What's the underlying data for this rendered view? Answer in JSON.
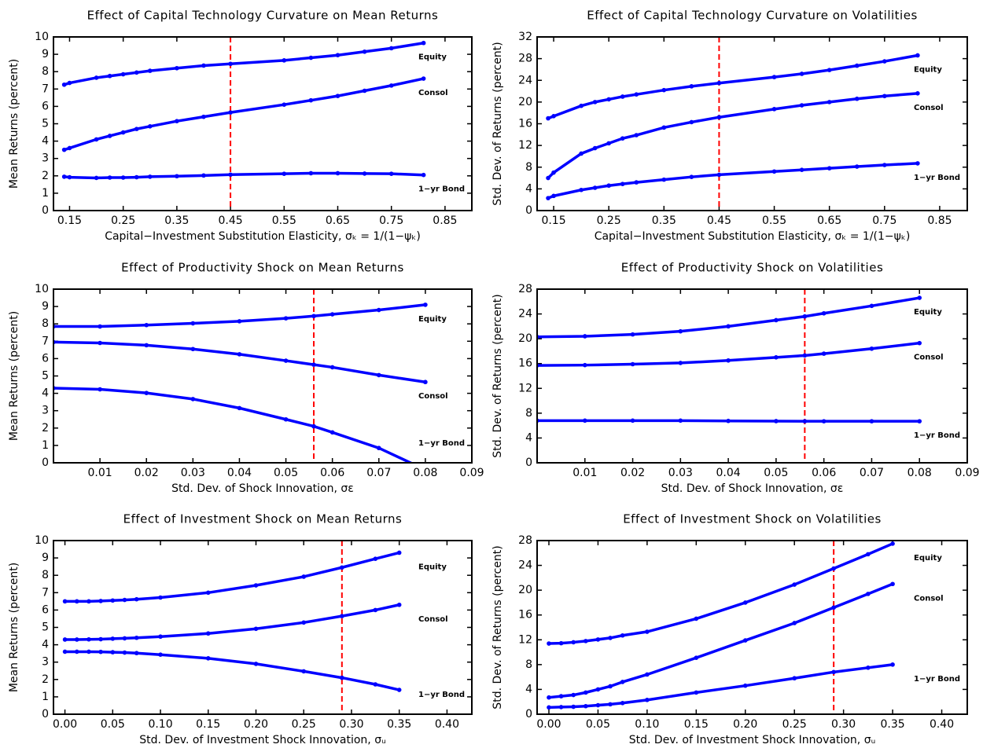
{
  "chart_data": [
    {
      "type": "line",
      "title": "Effect of Capital Technology Curvature on Mean Returns",
      "xlabel": "Capital−Investment Substitution Elasticity, σₖ = 1/(1−ψₖ)",
      "ylabel": "Mean Returns (percent)",
      "x": [
        0.14,
        0.15,
        0.2,
        0.225,
        0.25,
        0.275,
        0.3,
        0.35,
        0.4,
        0.45,
        0.55,
        0.6,
        0.65,
        0.7,
        0.75,
        0.81
      ],
      "series": [
        {
          "name": "Equity",
          "color": "#0000ff",
          "values": [
            7.25,
            7.35,
            7.65,
            7.75,
            7.85,
            7.95,
            8.05,
            8.2,
            8.35,
            8.45,
            8.65,
            8.8,
            8.95,
            9.15,
            9.35,
            9.65
          ]
        },
        {
          "name": "Consol",
          "color": "#0000ff",
          "values": [
            3.5,
            3.6,
            4.1,
            4.3,
            4.5,
            4.7,
            4.85,
            5.15,
            5.4,
            5.65,
            6.1,
            6.35,
            6.6,
            6.9,
            7.2,
            7.6
          ]
        },
        {
          "name": "1−yr Bond",
          "color": "#0000ff",
          "values": [
            1.95,
            1.92,
            1.88,
            1.9,
            1.9,
            1.92,
            1.95,
            1.98,
            2.02,
            2.07,
            2.12,
            2.15,
            2.15,
            2.13,
            2.12,
            2.05
          ]
        }
      ],
      "label_color": "#ff0000",
      "reference_line": {
        "x": 0.45,
        "color": "#ff0000"
      },
      "xlim": [
        0.12,
        0.9
      ],
      "xticks": [
        0.15,
        0.25,
        0.35,
        0.45,
        0.55,
        0.65,
        0.75,
        0.85
      ],
      "ylim": [
        0,
        10
      ],
      "yticks": [
        0,
        1,
        2,
        3,
        4,
        5,
        6,
        7,
        8,
        9,
        10
      ]
    },
    {
      "type": "line",
      "title": "Effect of Capital Technology Curvature on Volatilities",
      "xlabel": "Capital−Investment Substitution Elasticity, σₖ = 1/(1−ψₖ)",
      "ylabel": "Std. Dev. of Returns (percent)",
      "x": [
        0.14,
        0.15,
        0.2,
        0.225,
        0.25,
        0.275,
        0.3,
        0.35,
        0.4,
        0.45,
        0.55,
        0.6,
        0.65,
        0.7,
        0.75,
        0.81
      ],
      "series": [
        {
          "name": "Equity",
          "color": "#0000ff",
          "values": [
            17,
            17.4,
            19.3,
            20,
            20.5,
            21,
            21.4,
            22.2,
            22.9,
            23.5,
            24.6,
            25.2,
            25.9,
            26.7,
            27.5,
            28.6
          ]
        },
        {
          "name": "Consol",
          "color": "#0000ff",
          "values": [
            6,
            7,
            10.5,
            11.5,
            12.4,
            13.3,
            13.9,
            15.3,
            16.3,
            17.2,
            18.7,
            19.4,
            20,
            20.6,
            21.1,
            21.6
          ]
        },
        {
          "name": "1−yr Bond",
          "color": "#0000ff",
          "values": [
            2.3,
            2.7,
            3.8,
            4.2,
            4.6,
            4.9,
            5.2,
            5.7,
            6.2,
            6.6,
            7.2,
            7.5,
            7.8,
            8.1,
            8.4,
            8.7
          ]
        }
      ],
      "label_color": "#ff0000",
      "reference_line": {
        "x": 0.45,
        "color": "#ff0000"
      },
      "xlim": [
        0.12,
        0.9
      ],
      "xticks": [
        0.15,
        0.25,
        0.35,
        0.45,
        0.55,
        0.65,
        0.75,
        0.85
      ],
      "ylim": [
        0,
        32
      ],
      "yticks": [
        0,
        4,
        8,
        12,
        16,
        20,
        24,
        28,
        32
      ]
    },
    {
      "type": "line",
      "title": "Effect of Productivity Shock on Mean Returns",
      "xlabel": "Std. Dev. of Shock Innovation, σε",
      "ylabel": "Mean Returns (percent)",
      "x": [
        0,
        0.01,
        0.02,
        0.03,
        0.04,
        0.05,
        0.056,
        0.06,
        0.07,
        0.08
      ],
      "series": [
        {
          "name": "Equity",
          "color": "#0000ff",
          "values": [
            7.85,
            7.85,
            7.93,
            8.03,
            8.15,
            8.32,
            8.45,
            8.55,
            8.8,
            9.1
          ]
        },
        {
          "name": "Consol",
          "color": "#0000ff",
          "values": [
            6.95,
            6.9,
            6.77,
            6.55,
            6.25,
            5.88,
            5.65,
            5.5,
            5.05,
            4.65
          ]
        },
        {
          "name": "1−yr Bond",
          "color": "#0000ff",
          "values": [
            4.3,
            4.23,
            4.02,
            3.67,
            3.15,
            2.5,
            2.1,
            1.75,
            0.85,
            -0.4
          ]
        }
      ],
      "label_color": "#ff0000",
      "reference_line": {
        "x": 0.056,
        "color": "#ff0000"
      },
      "xlim": [
        0,
        0.09
      ],
      "xticks": [
        0.01,
        0.02,
        0.03,
        0.04,
        0.05,
        0.06,
        0.07,
        0.08,
        0.09
      ],
      "ylim": [
        0,
        10
      ],
      "yticks": [
        0,
        1,
        2,
        3,
        4,
        5,
        6,
        7,
        8,
        9,
        10
      ]
    },
    {
      "type": "line",
      "title": "Effect of Productivity Shock on Volatilities",
      "xlabel": "Std. Dev. of Shock Innovation, σε",
      "ylabel": "Std. Dev. of Returns (percent)",
      "x": [
        0,
        0.01,
        0.02,
        0.03,
        0.04,
        0.05,
        0.056,
        0.06,
        0.07,
        0.08
      ],
      "series": [
        {
          "name": "Equity",
          "color": "#0000ff",
          "values": [
            20.3,
            20.4,
            20.7,
            21.2,
            22,
            23,
            23.6,
            24.1,
            25.3,
            26.6
          ]
        },
        {
          "name": "Consol",
          "color": "#0000ff",
          "values": [
            15.7,
            15.75,
            15.9,
            16.1,
            16.5,
            17,
            17.3,
            17.6,
            18.4,
            19.3
          ]
        },
        {
          "name": "1−yr Bond",
          "color": "#0000ff",
          "values": [
            6.8,
            6.8,
            6.8,
            6.8,
            6.75,
            6.72,
            6.7,
            6.7,
            6.7,
            6.7
          ]
        }
      ],
      "label_color": "#ff0000",
      "reference_line": {
        "x": 0.056,
        "color": "#ff0000"
      },
      "xlim": [
        0,
        0.09
      ],
      "xticks": [
        0.01,
        0.02,
        0.03,
        0.04,
        0.05,
        0.06,
        0.07,
        0.08,
        0.09
      ],
      "ylim": [
        0,
        28
      ],
      "yticks": [
        0,
        4,
        8,
        12,
        16,
        20,
        24,
        28
      ]
    },
    {
      "type": "line",
      "title": "Effect of Investment Shock on Mean Returns",
      "xlabel": "Std. Dev. of Investment Shock Innovation, σᵤ",
      "ylabel": "Mean Returns (percent)",
      "x": [
        0,
        0.0125,
        0.025,
        0.0375,
        0.05,
        0.0625,
        0.075,
        0.1,
        0.15,
        0.2,
        0.25,
        0.29,
        0.325,
        0.35
      ],
      "series": [
        {
          "name": "Equity",
          "color": "#0000ff",
          "values": [
            6.5,
            6.5,
            6.5,
            6.52,
            6.55,
            6.58,
            6.62,
            6.72,
            7.0,
            7.42,
            7.92,
            8.45,
            8.95,
            9.3
          ]
        },
        {
          "name": "Consol",
          "color": "#0000ff",
          "values": [
            4.3,
            4.3,
            4.31,
            4.32,
            4.35,
            4.37,
            4.4,
            4.47,
            4.65,
            4.92,
            5.28,
            5.65,
            6.0,
            6.3
          ]
        },
        {
          "name": "1−yr Bond",
          "color": "#0000ff",
          "values": [
            3.6,
            3.6,
            3.6,
            3.59,
            3.57,
            3.55,
            3.52,
            3.43,
            3.22,
            2.9,
            2.47,
            2.1,
            1.72,
            1.4
          ]
        }
      ],
      "label_color": "#ff0000",
      "reference_line": {
        "x": 0.29,
        "color": "#ff0000"
      },
      "xlim": [
        -0.012,
        0.426
      ],
      "xticks": [
        {
          "value": 0,
          "label": "0.00"
        },
        0.05,
        {
          "value": 0.1,
          "label": "0.10"
        },
        0.15,
        {
          "value": 0.2,
          "label": "0.20"
        },
        0.25,
        {
          "value": 0.3,
          "label": "0.30"
        },
        0.35,
        {
          "value": 0.4,
          "label": "0.40"
        }
      ],
      "ylim": [
        0,
        10
      ],
      "yticks": [
        0,
        1,
        2,
        3,
        4,
        5,
        6,
        7,
        8,
        9,
        10
      ]
    },
    {
      "type": "line",
      "title": "Effect of Investment Shock on Volatilities",
      "xlabel": "Std. Dev. of Investment Shock Innovation, σᵤ",
      "ylabel": "Std. Dev. of Returns (percent)",
      "x": [
        0,
        0.0125,
        0.025,
        0.0375,
        0.05,
        0.0625,
        0.075,
        0.1,
        0.15,
        0.2,
        0.25,
        0.29,
        0.325,
        0.35
      ],
      "series": [
        {
          "name": "Equity",
          "color": "#0000ff",
          "values": [
            11.4,
            11.45,
            11.6,
            11.8,
            12.05,
            12.3,
            12.7,
            13.3,
            15.4,
            18,
            20.9,
            23.5,
            25.8,
            27.5
          ]
        },
        {
          "name": "Consol",
          "color": "#0000ff",
          "values": [
            2.7,
            2.9,
            3.1,
            3.5,
            4,
            4.5,
            5.2,
            6.4,
            9.1,
            11.9,
            14.7,
            17.2,
            19.4,
            21
          ]
        },
        {
          "name": "1−yr Bond",
          "color": "#0000ff",
          "values": [
            1.1,
            1.15,
            1.2,
            1.3,
            1.45,
            1.6,
            1.8,
            2.3,
            3.5,
            4.6,
            5.8,
            6.8,
            7.5,
            8
          ]
        }
      ],
      "label_color": "#ff0000",
      "reference_line": {
        "x": 0.29,
        "color": "#ff0000"
      },
      "xlim": [
        -0.012,
        0.426
      ],
      "xticks": [
        {
          "value": 0,
          "label": "0.00"
        },
        0.05,
        {
          "value": 0.1,
          "label": "0.10"
        },
        0.15,
        {
          "value": 0.2,
          "label": "0.20"
        },
        0.25,
        {
          "value": 0.3,
          "label": "0.30"
        },
        0.35,
        {
          "value": 0.4,
          "label": "0.40"
        }
      ],
      "ylim": [
        0,
        28
      ],
      "yticks": [
        0,
        4,
        8,
        12,
        16,
        20,
        24,
        28
      ]
    }
  ]
}
